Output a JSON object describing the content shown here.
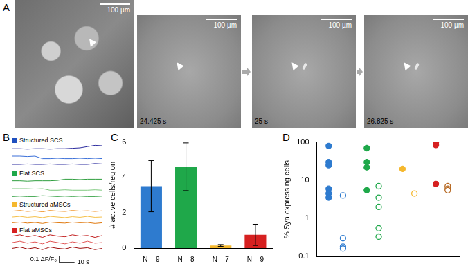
{
  "panel_a": {
    "panel_label": "A",
    "images": [
      {
        "scale_bar": "100 µm"
      },
      {
        "scale_bar": "100 µm",
        "time": "24.425 s"
      },
      {
        "scale_bar": "100 µm",
        "time": "25 s"
      },
      {
        "scale_bar": "100 µm",
        "time": "26.825 s"
      }
    ]
  },
  "chart_data": [
    {
      "panel_label": "B",
      "type": "line",
      "x": [
        0,
        5,
        10,
        15,
        20,
        25,
        30,
        35,
        40,
        45,
        50,
        55,
        60
      ],
      "xlim": [
        0,
        60
      ],
      "ylim": [
        0,
        0.3
      ],
      "tick_labels": false,
      "grid": false,
      "groups": [
        {
          "name": "Structured SCS",
          "color": "#1f4fbf",
          "series": [
            {
              "color": "#2b2b9e",
              "values": [
                0.24,
                0.24,
                0.235,
                0.24,
                0.24,
                0.235,
                0.24,
                0.24,
                0.245,
                0.25,
                0.265,
                0.28,
                0.275
              ]
            },
            {
              "color": "#3a6fd8",
              "values": [
                0.15,
                0.15,
                0.145,
                0.15,
                0.12,
                0.12,
                0.125,
                0.12,
                0.12,
                0.125,
                0.12,
                0.125,
                0.12
              ]
            },
            {
              "color": "#2b2b9e",
              "values": [
                0.05,
                0.05,
                0.055,
                0.05,
                0.05,
                0.055,
                0.05,
                0.05,
                0.055,
                0.05,
                0.05,
                0.06,
                0.055
              ]
            }
          ]
        },
        {
          "name": "Flat SCS",
          "color": "#1fa84a",
          "series": [
            {
              "color": "#2e9e3e",
              "values": [
                0.25,
                0.25,
                0.245,
                0.25,
                0.25,
                0.25,
                0.255,
                0.27,
                0.27,
                0.265,
                0.27,
                0.27,
                0.27
              ]
            },
            {
              "color": "#7fc97f",
              "values": [
                0.15,
                0.15,
                0.15,
                0.145,
                0.15,
                0.13,
                0.13,
                0.135,
                0.13,
                0.13,
                0.13,
                0.135,
                0.13
              ]
            },
            {
              "color": "#2e9e3e",
              "values": [
                0.05,
                0.055,
                0.05,
                0.05,
                0.06,
                0.055,
                0.05,
                0.055,
                0.05,
                0.055,
                0.05,
                0.05,
                0.055
              ]
            }
          ]
        },
        {
          "name": "Structured aMSCs",
          "color": "#f5b82e",
          "series": [
            {
              "color": "#f08c1a",
              "values": [
                0.24,
                0.25,
                0.235,
                0.245,
                0.23,
                0.25,
                0.24,
                0.235,
                0.25,
                0.24,
                0.245,
                0.235,
                0.245
              ]
            },
            {
              "color": "#f5c04a",
              "values": [
                0.15,
                0.16,
                0.145,
                0.155,
                0.14,
                0.16,
                0.15,
                0.14,
                0.155,
                0.145,
                0.16,
                0.145,
                0.15
              ]
            },
            {
              "color": "#e07a10",
              "values": [
                0.06,
                0.07,
                0.055,
                0.065,
                0.05,
                0.07,
                0.06,
                0.055,
                0.07,
                0.06,
                0.065,
                0.05,
                0.06
              ]
            }
          ]
        },
        {
          "name": "Flat aMSCs",
          "color": "#d62020",
          "series": [
            {
              "color": "#c01818",
              "values": [
                0.25,
                0.27,
                0.24,
                0.26,
                0.23,
                0.27,
                0.25,
                0.24,
                0.27,
                0.25,
                0.26,
                0.23,
                0.26
              ]
            },
            {
              "color": "#e05050",
              "values": [
                0.15,
                0.17,
                0.14,
                0.16,
                0.13,
                0.17,
                0.15,
                0.13,
                0.16,
                0.14,
                0.17,
                0.14,
                0.15
              ]
            },
            {
              "color": "#a01010",
              "values": [
                0.06,
                0.08,
                0.05,
                0.07,
                0.04,
                0.08,
                0.06,
                0.05,
                0.08,
                0.06,
                0.07,
                0.04,
                0.06
              ]
            }
          ]
        }
      ],
      "scale_bars": [
        {
          "axis": "y",
          "value": 0.1,
          "label": "0.1 ΔF/F₀"
        },
        {
          "axis": "x",
          "value": 10,
          "label": "10 s"
        }
      ]
    },
    {
      "panel_label": "C",
      "type": "bar",
      "categories": [
        "N = 9",
        "N = 8",
        "N = 7",
        "N = 9"
      ],
      "values": [
        3.5,
        4.6,
        0.15,
        0.75
      ],
      "errors": [
        1.45,
        1.35,
        0.05,
        0.6
      ],
      "colors": [
        "#2e7bcf",
        "#1fa84a",
        "#f5b82e",
        "#d62020"
      ],
      "y_label": "# active cells/region",
      "ylim": [
        0,
        6
      ],
      "yticks": [
        0,
        2,
        4,
        6
      ],
      "grid": false
    },
    {
      "panel_label": "D",
      "type": "scatter",
      "log": "y",
      "y_label": "% Syn expressing cells",
      "xlim": [
        0.5,
        6.5
      ],
      "xticks": [],
      "ylim": [
        0.1,
        100
      ],
      "yticks": [
        0.1,
        1,
        10,
        100
      ],
      "grid": false,
      "tick_labels": "y",
      "series": [
        {
          "color": "#2e7bcf",
          "marker": "circle",
          "x": [
            1,
            1,
            1,
            1,
            1,
            1
          ],
          "values": [
            80,
            30,
            25,
            6,
            4.5,
            3.5
          ]
        },
        {
          "color": "#2e7bcf",
          "marker": "circle_open",
          "x": [
            1.6,
            1.6,
            1.6,
            1.6
          ],
          "values": [
            4,
            0.3,
            0.18,
            0.16
          ]
        },
        {
          "color": "#1fa84a",
          "marker": "circle",
          "x": [
            2.6,
            2.6,
            2.6,
            2.6
          ],
          "values": [
            70,
            30,
            22,
            5.5
          ]
        },
        {
          "color": "#1fa84a",
          "marker": "circle_open",
          "x": [
            3.1,
            3.1,
            3.1,
            3.1,
            3.1
          ],
          "values": [
            7,
            3.5,
            2,
            0.55,
            0.33
          ]
        },
        {
          "color": "#f5b82e",
          "marker": "circle",
          "x": [
            4.1
          ],
          "values": [
            20
          ]
        },
        {
          "color": "#f5b82e",
          "marker": "circle_open",
          "x": [
            4.6
          ],
          "values": [
            4.5
          ]
        },
        {
          "color": "#d62020",
          "marker": "circle",
          "x": [
            5.5,
            5.5,
            5.5
          ],
          "values": [
            100,
            85,
            8
          ]
        },
        {
          "color": "#b5651d",
          "marker": "circle_open",
          "x": [
            6,
            6,
            6
          ],
          "values": [
            7,
            6,
            5.5
          ]
        }
      ]
    }
  ]
}
